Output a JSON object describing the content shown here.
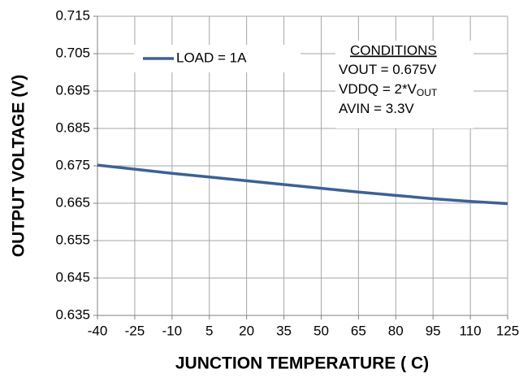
{
  "chart_data": {
    "type": "line",
    "xlabel": "JUNCTION TEMPERATURE ( C)",
    "ylabel": "OUTPUT VOLTAGE (V)",
    "x": [
      -40,
      -25,
      -10,
      5,
      20,
      35,
      50,
      65,
      80,
      95,
      110,
      125
    ],
    "series": [
      {
        "name": "LOAD = 1A",
        "color": "#3d6096",
        "values": [
          0.6752,
          0.6741,
          0.673,
          0.672,
          0.671,
          0.67,
          0.669,
          0.668,
          0.6671,
          0.6662,
          0.6655,
          0.6649
        ]
      }
    ],
    "xlim": [
      -40,
      125
    ],
    "xticks": [
      -40,
      -25,
      -10,
      5,
      20,
      35,
      50,
      65,
      80,
      95,
      110,
      125
    ],
    "ylim": [
      0.635,
      0.715
    ],
    "yticks": [
      0.635,
      0.645,
      0.655,
      0.665,
      0.675,
      0.685,
      0.695,
      0.705,
      0.715
    ],
    "grid": true,
    "legend": "upper left",
    "annotations": {
      "heading": "CONDITIONS",
      "lines": [
        {
          "text": "VOUT = 0.675V"
        },
        {
          "text": "VDDQ = 2*V",
          "sub": "OUT"
        },
        {
          "text": "AVIN = 3.3V"
        }
      ]
    }
  }
}
